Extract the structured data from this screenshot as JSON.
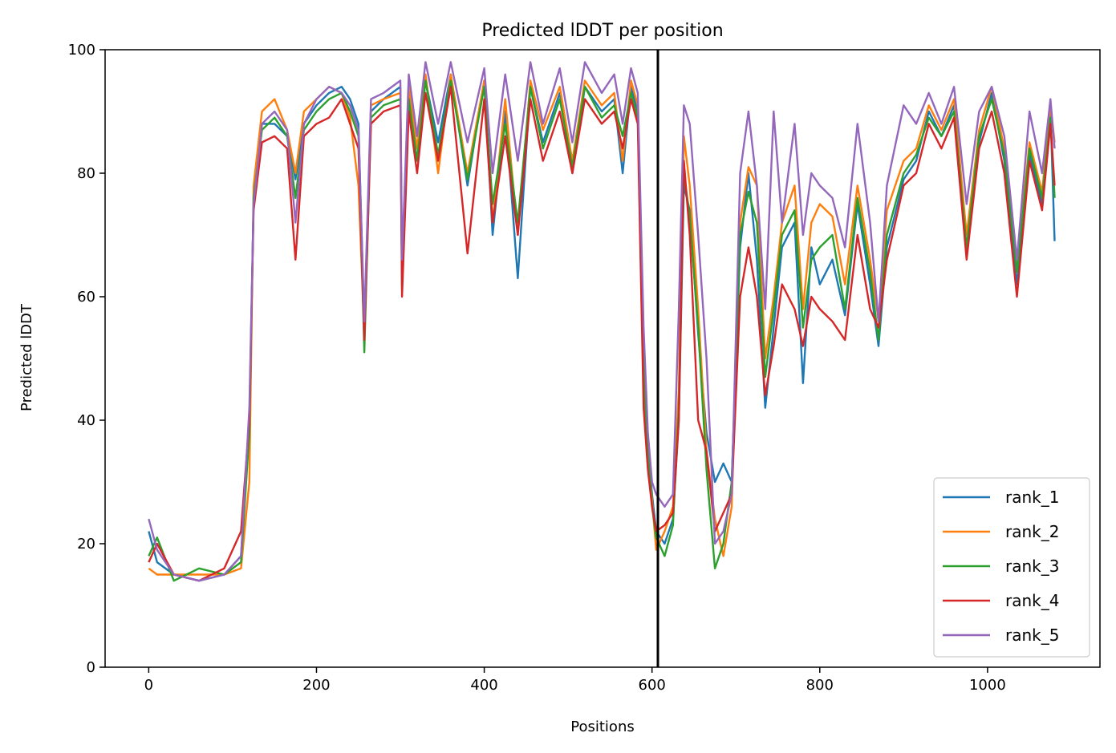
{
  "chart_data": {
    "type": "line",
    "title": "Predicted lDDT per position",
    "xlabel": "Positions",
    "ylabel": "Predicted lDDT",
    "xlim": [
      -52,
      1134
    ],
    "ylim": [
      0,
      100
    ],
    "xticks": [
      0,
      200,
      400,
      600,
      800,
      1000
    ],
    "yticks": [
      0,
      20,
      40,
      60,
      80,
      100
    ],
    "grid": false,
    "legend_position": "lower right",
    "vertical_line": {
      "x": 607,
      "color": "#000000"
    },
    "series": [
      {
        "name": "rank_1",
        "color": "#1f77b4",
        "x": [
          0,
          10,
          30,
          60,
          90,
          110,
          120,
          125,
          135,
          150,
          165,
          175,
          185,
          200,
          215,
          230,
          240,
          250,
          257,
          265,
          280,
          300,
          302,
          310,
          320,
          330,
          345,
          360,
          380,
          400,
          410,
          425,
          440,
          455,
          470,
          490,
          505,
          520,
          540,
          555,
          565,
          575,
          583,
          590,
          595,
          600,
          605,
          615,
          625,
          632,
          638,
          645,
          655,
          665,
          675,
          685,
          695,
          705,
          715,
          725,
          735,
          745,
          755,
          770,
          780,
          790,
          800,
          815,
          830,
          845,
          860,
          870,
          880,
          900,
          915,
          930,
          945,
          960,
          975,
          990,
          1005,
          1020,
          1035,
          1050,
          1065,
          1075,
          1080
        ],
        "values": [
          22,
          17,
          15,
          14,
          15,
          18,
          40,
          75,
          88,
          88,
          86,
          79,
          88,
          91,
          93,
          94,
          92,
          88,
          55,
          90,
          92,
          94,
          62,
          93,
          82,
          95,
          85,
          96,
          78,
          95,
          70,
          90,
          63,
          94,
          85,
          93,
          80,
          94,
          90,
          92,
          80,
          94,
          90,
          50,
          36,
          28,
          22,
          20,
          24,
          40,
          78,
          74,
          54,
          38,
          30,
          33,
          30,
          68,
          80,
          66,
          42,
          55,
          68,
          72,
          46,
          68,
          62,
          66,
          57,
          75,
          62,
          52,
          68,
          79,
          82,
          90,
          86,
          91,
          67,
          85,
          93,
          82,
          62,
          83,
          75,
          90,
          69
        ]
      },
      {
        "name": "rank_2",
        "color": "#ff7f0e",
        "x": [
          0,
          10,
          30,
          60,
          90,
          110,
          120,
          125,
          135,
          150,
          165,
          175,
          185,
          200,
          215,
          230,
          240,
          250,
          257,
          265,
          280,
          300,
          302,
          310,
          320,
          330,
          345,
          360,
          380,
          400,
          410,
          425,
          440,
          455,
          470,
          490,
          505,
          520,
          540,
          555,
          565,
          575,
          583,
          590,
          595,
          600,
          605,
          615,
          625,
          632,
          638,
          645,
          655,
          665,
          675,
          685,
          695,
          705,
          715,
          725,
          735,
          745,
          755,
          770,
          780,
          790,
          800,
          815,
          830,
          845,
          860,
          870,
          880,
          900,
          915,
          930,
          945,
          960,
          975,
          990,
          1005,
          1020,
          1035,
          1050,
          1065,
          1075,
          1080
        ],
        "values": [
          16,
          15,
          15,
          15,
          15,
          16,
          30,
          78,
          90,
          92,
          87,
          80,
          90,
          92,
          94,
          93,
          89,
          78,
          54,
          91,
          92,
          93,
          64,
          94,
          84,
          96,
          80,
          96,
          80,
          95,
          72,
          92,
          70,
          95,
          87,
          94,
          82,
          95,
          91,
          93,
          82,
          95,
          91,
          45,
          34,
          27,
          19,
          22,
          26,
          45,
          86,
          78,
          58,
          35,
          24,
          18,
          26,
          72,
          81,
          78,
          50,
          60,
          72,
          78,
          58,
          72,
          75,
          73,
          62,
          78,
          66,
          56,
          74,
          82,
          84,
          91,
          87,
          92,
          70,
          87,
          94,
          84,
          65,
          85,
          77,
          91,
          85
        ]
      },
      {
        "name": "rank_3",
        "color": "#2ca02c",
        "x": [
          0,
          10,
          30,
          60,
          90,
          110,
          120,
          125,
          135,
          150,
          165,
          175,
          185,
          200,
          215,
          230,
          240,
          250,
          257,
          265,
          280,
          300,
          302,
          310,
          320,
          330,
          345,
          360,
          380,
          400,
          410,
          425,
          440,
          455,
          470,
          490,
          505,
          520,
          540,
          555,
          565,
          575,
          583,
          590,
          595,
          600,
          605,
          615,
          625,
          632,
          638,
          645,
          655,
          665,
          675,
          685,
          695,
          705,
          715,
          725,
          735,
          745,
          755,
          770,
          780,
          790,
          800,
          815,
          830,
          845,
          860,
          870,
          880,
          900,
          915,
          930,
          945,
          960,
          975,
          990,
          1005,
          1020,
          1035,
          1050,
          1065,
          1075,
          1080
        ],
        "values": [
          18,
          21,
          14,
          16,
          15,
          17,
          38,
          76,
          87,
          89,
          86,
          76,
          87,
          90,
          92,
          93,
          90,
          86,
          51,
          89,
          91,
          92,
          61,
          92,
          82,
          95,
          83,
          95,
          79,
          94,
          75,
          88,
          72,
          94,
          84,
          92,
          81,
          94,
          89,
          91,
          86,
          93,
          89,
          48,
          35,
          26,
          21,
          18,
          23,
          42,
          80,
          73,
          55,
          32,
          16,
          20,
          30,
          70,
          77,
          72,
          47,
          58,
          70,
          74,
          55,
          66,
          68,
          70,
          58,
          76,
          64,
          53,
          70,
          80,
          83,
          89,
          86,
          90,
          68,
          86,
          92,
          83,
          64,
          84,
          76,
          89,
          76
        ]
      },
      {
        "name": "rank_4",
        "color": "#d62728",
        "x": [
          0,
          10,
          30,
          60,
          90,
          110,
          120,
          125,
          135,
          150,
          165,
          175,
          185,
          200,
          215,
          230,
          240,
          250,
          257,
          265,
          280,
          300,
          302,
          310,
          320,
          330,
          345,
          360,
          380,
          400,
          410,
          425,
          440,
          455,
          470,
          490,
          505,
          520,
          540,
          555,
          565,
          575,
          583,
          590,
          595,
          600,
          605,
          615,
          625,
          632,
          638,
          645,
          655,
          665,
          675,
          685,
          695,
          705,
          715,
          725,
          735,
          745,
          755,
          770,
          780,
          790,
          800,
          815,
          830,
          845,
          860,
          870,
          880,
          900,
          915,
          930,
          945,
          960,
          975,
          990,
          1005,
          1020,
          1035,
          1050,
          1065,
          1075,
          1080
        ],
        "values": [
          17,
          20,
          15,
          14,
          16,
          22,
          40,
          74,
          85,
          86,
          84,
          66,
          86,
          88,
          89,
          92,
          88,
          84,
          53,
          88,
          90,
          91,
          60,
          90,
          80,
          93,
          82,
          94,
          67,
          92,
          72,
          86,
          70,
          92,
          82,
          90,
          80,
          92,
          88,
          90,
          84,
          92,
          88,
          42,
          32,
          26,
          22,
          23,
          25,
          40,
          82,
          70,
          40,
          35,
          22,
          25,
          28,
          60,
          68,
          60,
          44,
          52,
          62,
          58,
          52,
          60,
          58,
          56,
          53,
          70,
          58,
          55,
          66,
          78,
          80,
          88,
          84,
          89,
          66,
          84,
          90,
          80,
          60,
          82,
          74,
          88,
          78
        ]
      },
      {
        "name": "rank_5",
        "color": "#9467bd",
        "x": [
          0,
          10,
          30,
          60,
          90,
          110,
          120,
          125,
          135,
          150,
          165,
          175,
          185,
          200,
          215,
          230,
          240,
          250,
          257,
          265,
          280,
          300,
          302,
          310,
          320,
          330,
          345,
          360,
          380,
          400,
          410,
          425,
          440,
          455,
          470,
          490,
          505,
          520,
          540,
          555,
          565,
          575,
          583,
          590,
          595,
          600,
          605,
          615,
          625,
          632,
          638,
          645,
          655,
          665,
          675,
          685,
          695,
          705,
          715,
          725,
          735,
          745,
          755,
          770,
          780,
          790,
          800,
          815,
          830,
          845,
          860,
          870,
          880,
          900,
          915,
          930,
          945,
          960,
          975,
          990,
          1005,
          1020,
          1035,
          1050,
          1065,
          1075,
          1080
        ],
        "values": [
          24,
          19,
          15,
          14,
          15,
          18,
          42,
          75,
          88,
          90,
          87,
          72,
          88,
          92,
          94,
          93,
          91,
          87,
          56,
          92,
          93,
          95,
          66,
          96,
          86,
          98,
          88,
          98,
          85,
          97,
          80,
          96,
          82,
          98,
          88,
          97,
          85,
          98,
          93,
          96,
          88,
          97,
          93,
          55,
          38,
          30,
          28,
          26,
          28,
          58,
          91,
          88,
          70,
          50,
          20,
          22,
          28,
          80,
          90,
          78,
          58,
          90,
          72,
          88,
          70,
          80,
          78,
          76,
          68,
          88,
          72,
          56,
          78,
          91,
          88,
          93,
          88,
          94,
          75,
          90,
          94,
          86,
          66,
          90,
          80,
          92,
          84
        ]
      }
    ]
  }
}
